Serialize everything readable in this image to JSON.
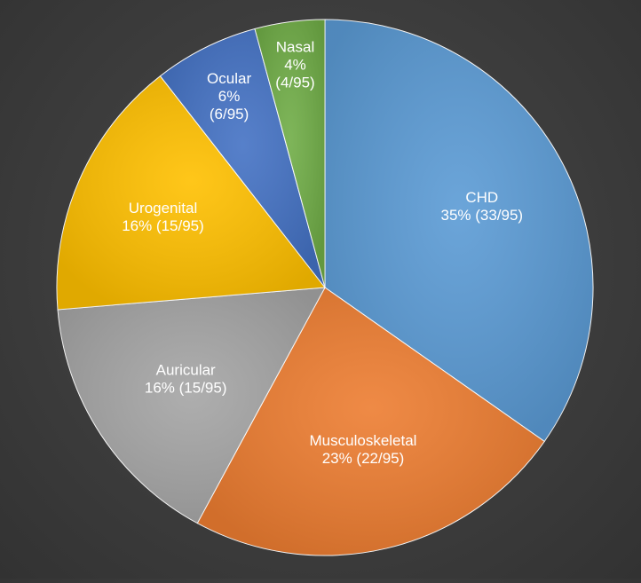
{
  "chart_data": {
    "type": "pie",
    "title": "",
    "start_angle_deg": 0,
    "direction": "clockwise",
    "slices": [
      {
        "name": "CHD",
        "value": 33,
        "percent_label": "35% (33/95)",
        "color": "#5b9bd5",
        "label_lines": [
          "CHD",
          "35% (33/95)"
        ]
      },
      {
        "name": "Musculoskeletal",
        "value": 22,
        "percent_label": "23% (22/95)",
        "color": "#ed7d31",
        "label_lines": [
          "Musculoskeletal",
          "23% (22/95)"
        ]
      },
      {
        "name": "Auricular",
        "value": 15,
        "percent_label": "16% (15/95)",
        "color": "#a5a5a5",
        "label_lines": [
          "Auricular",
          "16% (15/95)"
        ]
      },
      {
        "name": "Urogenital",
        "value": 15,
        "percent_label": "16% (15/95)",
        "color": "#ffc000",
        "label_lines": [
          "Urogenital",
          "16% (15/95)"
        ]
      },
      {
        "name": "Ocular",
        "value": 6,
        "percent_label": "6% (6/95)",
        "color": "#4472c4",
        "label_lines": [
          "Ocular",
          "6%",
          "(6/95)"
        ]
      },
      {
        "name": "Nasal",
        "value": 4,
        "percent_label": "4% (4/95)",
        "color": "#70ad47",
        "label_lines": [
          "Nasal",
          "4%",
          "(4/95)"
        ]
      }
    ],
    "total": 95,
    "legend": "none"
  }
}
